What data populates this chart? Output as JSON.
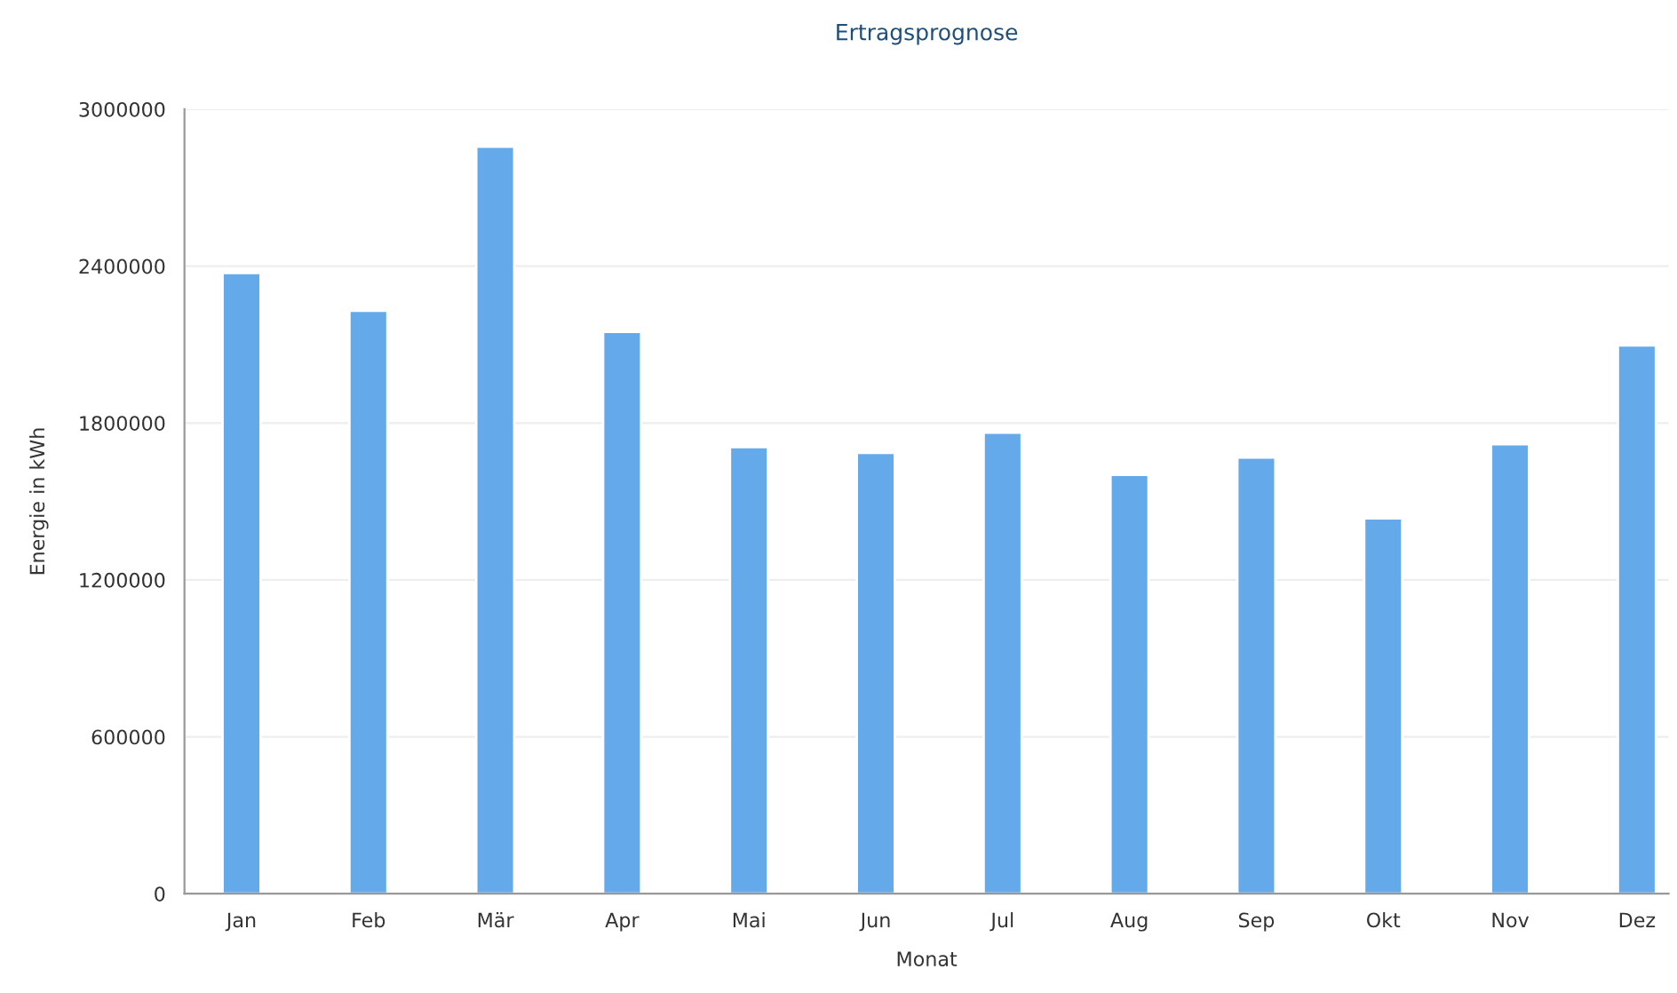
{
  "chart_data": {
    "type": "bar",
    "title": "Ertragsprognose",
    "xlabel": "Monat",
    "ylabel": "Energie in kWh",
    "categories": [
      "Jan",
      "Feb",
      "Mär",
      "Apr",
      "Mai",
      "Jun",
      "Jul",
      "Aug",
      "Sep",
      "Okt",
      "Nov",
      "Dez"
    ],
    "values": [
      2374000,
      2229000,
      2857000,
      2149000,
      1708000,
      1686000,
      1763000,
      1602000,
      1668000,
      1435000,
      1719000,
      2097000
    ],
    "color": "#64aaea",
    "ylim": [
      0,
      3000000
    ],
    "yticks": [
      0,
      600000,
      1200000,
      1800000,
      2400000,
      3000000
    ],
    "grid": "y"
  }
}
